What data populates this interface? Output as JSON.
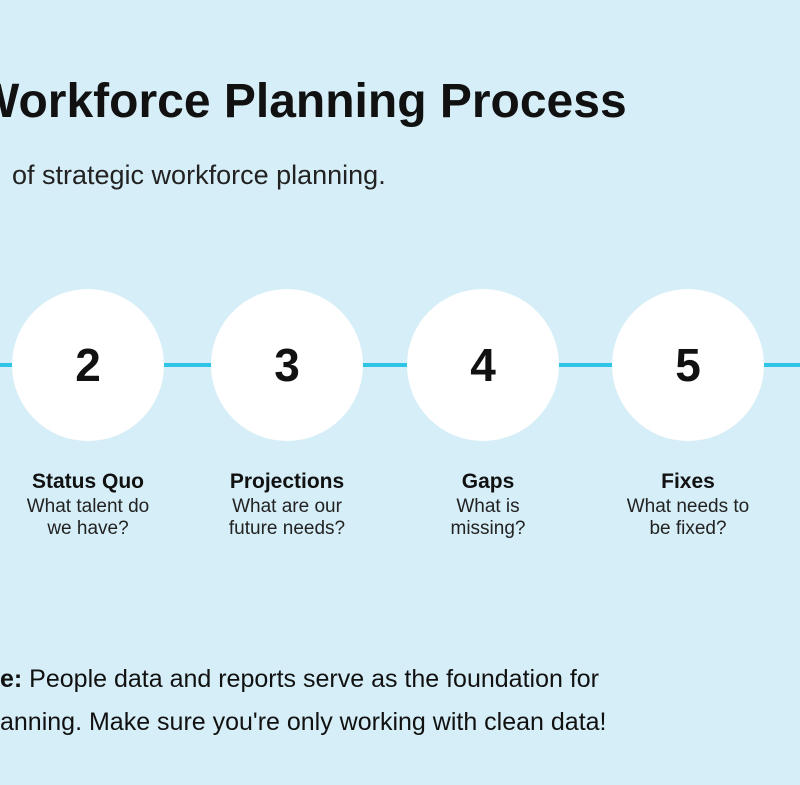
{
  "header": {
    "title": "orkforce Planning Process",
    "title_prefix": "W",
    "subtitle": "of strategic workforce planning."
  },
  "colors": {
    "background": "#d6eef7",
    "accent_line": "#2ec4e6",
    "circle": "#ffffff"
  },
  "steps": [
    {
      "number": "2",
      "title": "Status Quo",
      "desc1": "What talent do",
      "desc2": "we have?"
    },
    {
      "number": "3",
      "title": "Projections",
      "desc1": "What are our",
      "desc2": "future needs?"
    },
    {
      "number": "4",
      "title": "Gaps",
      "desc1": "What is",
      "desc2": "missing?"
    },
    {
      "number": "5",
      "title": "Fixes",
      "desc1": "What needs to",
      "desc2": "be fixed?"
    }
  ],
  "note": {
    "label": "e:",
    "line1": " People data and reports serve as the foundation for",
    "line2": "anning. Make sure you're only working with clean data!"
  }
}
